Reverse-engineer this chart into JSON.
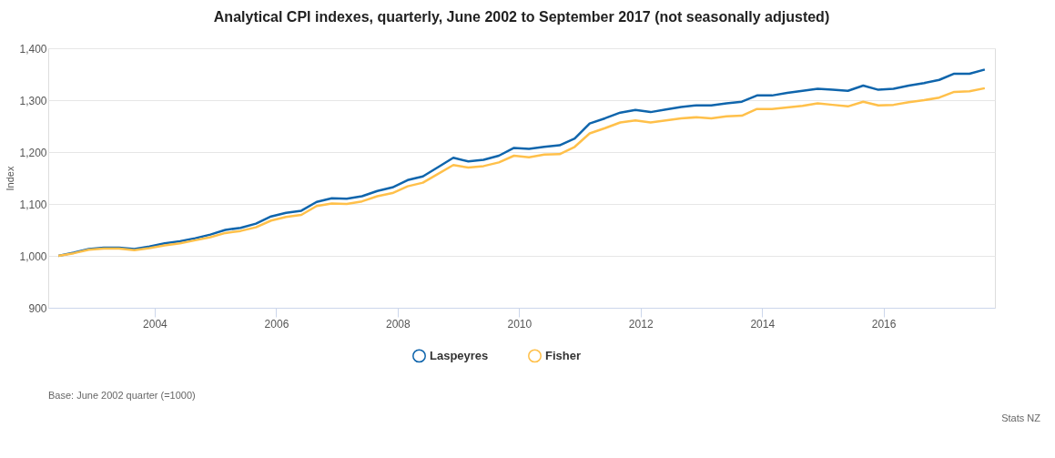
{
  "chart_data": {
    "type": "line",
    "title": "Analytical CPI indexes, quarterly, June 2002 to September 2017 (not seasonally adjusted)",
    "ylabel": "Index",
    "x": [
      "2002-06",
      "2002-09",
      "2002-12",
      "2003-03",
      "2003-06",
      "2003-09",
      "2003-12",
      "2004-03",
      "2004-06",
      "2004-09",
      "2004-12",
      "2005-03",
      "2005-06",
      "2005-09",
      "2005-12",
      "2006-03",
      "2006-06",
      "2006-09",
      "2006-12",
      "2007-03",
      "2007-06",
      "2007-09",
      "2007-12",
      "2008-03",
      "2008-06",
      "2008-09",
      "2008-12",
      "2009-03",
      "2009-06",
      "2009-09",
      "2009-12",
      "2010-03",
      "2010-06",
      "2010-09",
      "2010-12",
      "2011-03",
      "2011-06",
      "2011-09",
      "2011-12",
      "2012-03",
      "2012-06",
      "2012-09",
      "2012-12",
      "2013-03",
      "2013-06",
      "2013-09",
      "2013-12",
      "2014-03",
      "2014-06",
      "2014-09",
      "2014-12",
      "2015-03",
      "2015-06",
      "2015-09",
      "2015-12",
      "2016-03",
      "2016-06",
      "2016-09",
      "2016-12",
      "2017-03",
      "2017-06",
      "2017-09"
    ],
    "series": [
      {
        "name": "Laspeyres",
        "color": "#0f65ac",
        "values": [
          1000,
          1006,
          1013,
          1016,
          1016,
          1013,
          1018,
          1024,
          1028,
          1034,
          1041,
          1050,
          1054,
          1062,
          1076,
          1083,
          1087,
          1104,
          1111,
          1110,
          1115,
          1125,
          1132,
          1146,
          1153,
          1171,
          1189,
          1182,
          1185,
          1193,
          1208,
          1206,
          1210,
          1213,
          1226,
          1255,
          1265,
          1276,
          1281,
          1277,
          1282,
          1287,
          1290,
          1290,
          1294,
          1297,
          1309,
          1309,
          1314,
          1318,
          1322,
          1320,
          1318,
          1328,
          1320,
          1322,
          1328,
          1333,
          1339,
          1351,
          1351,
          1359
        ]
      },
      {
        "name": "Fisher",
        "color": "#ffc04a",
        "values": [
          1000,
          1005,
          1012,
          1014,
          1014,
          1011,
          1015,
          1020,
          1024,
          1030,
          1036,
          1044,
          1048,
          1055,
          1068,
          1075,
          1079,
          1096,
          1101,
          1100,
          1105,
          1115,
          1121,
          1134,
          1141,
          1158,
          1175,
          1170,
          1173,
          1180,
          1193,
          1190,
          1195,
          1196,
          1210,
          1236,
          1246,
          1257,
          1261,
          1257,
          1261,
          1265,
          1267,
          1265,
          1269,
          1270,
          1283,
          1283,
          1286,
          1289,
          1294,
          1291,
          1288,
          1297,
          1290,
          1291,
          1296,
          1300,
          1305,
          1316,
          1317,
          1323
        ]
      }
    ],
    "xlim": [
      "2002-04",
      "2017-11"
    ],
    "xticks": [
      "2004",
      "2006",
      "2008",
      "2010",
      "2012",
      "2014",
      "2016"
    ],
    "ylim": [
      900,
      1400
    ],
    "yticks": [
      900,
      {
        "value": 1000,
        "label": "1,000"
      },
      {
        "value": 1100,
        "label": "1,100"
      },
      {
        "value": 1200,
        "label": "1,200"
      },
      {
        "value": 1300,
        "label": "1,300"
      },
      {
        "value": 1400,
        "label": "1,400"
      }
    ],
    "grid": "y",
    "legend": "bottom",
    "marker": "none",
    "line_style": "solid",
    "annotations": [
      "Base: June 2002 quarter (=1000)",
      "Stats NZ"
    ]
  }
}
